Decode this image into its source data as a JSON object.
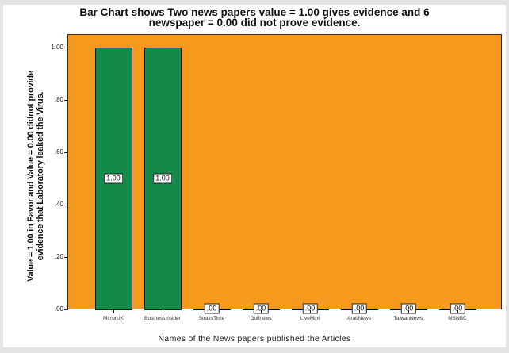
{
  "chart_data": {
    "type": "bar",
    "title": "Bar Chart shows Two news papers value = 1.00 gives evidence and 6 newspaper = 0.00 did not prove evidence.",
    "title_lines": [
      "Bar Chart shows Two news papers value = 1.00 gives evidence and 6",
      "newspaper = 0.00 did not prove evidence."
    ],
    "xlabel": "Names of the News papers published the Articles",
    "ylabel": "Value = 1.00 in Favor and Value = 0.00 didnot provide evidence that Laboratory leaked the Virus.",
    "ylabel_lines": [
      "Value = 1.00 in Favor and Value = 0.00 didnot provide",
      "evidence that Laboratory leaked the Virus."
    ],
    "categories": [
      "MirrorUK",
      "BusinessInsider",
      "StraitsTime",
      "Gulfnews",
      "LiveMint",
      "ArabNews",
      "TaiwanNews",
      "MSNBC"
    ],
    "values": [
      1.0,
      1.0,
      0.0,
      0.0,
      0.0,
      0.0,
      0.0,
      0.0
    ],
    "value_labels": [
      "1.00",
      "1.00",
      ".00",
      ".00",
      ".00",
      ".00",
      ".00",
      ".00"
    ],
    "yticks": [
      ".00",
      ".20",
      ".40",
      ".60",
      ".80",
      "1.00"
    ],
    "ylim": [
      0,
      1.0
    ],
    "grid": false,
    "legend": null,
    "colors": {
      "background": "#f7991f",
      "bar": "#138a4a"
    }
  }
}
